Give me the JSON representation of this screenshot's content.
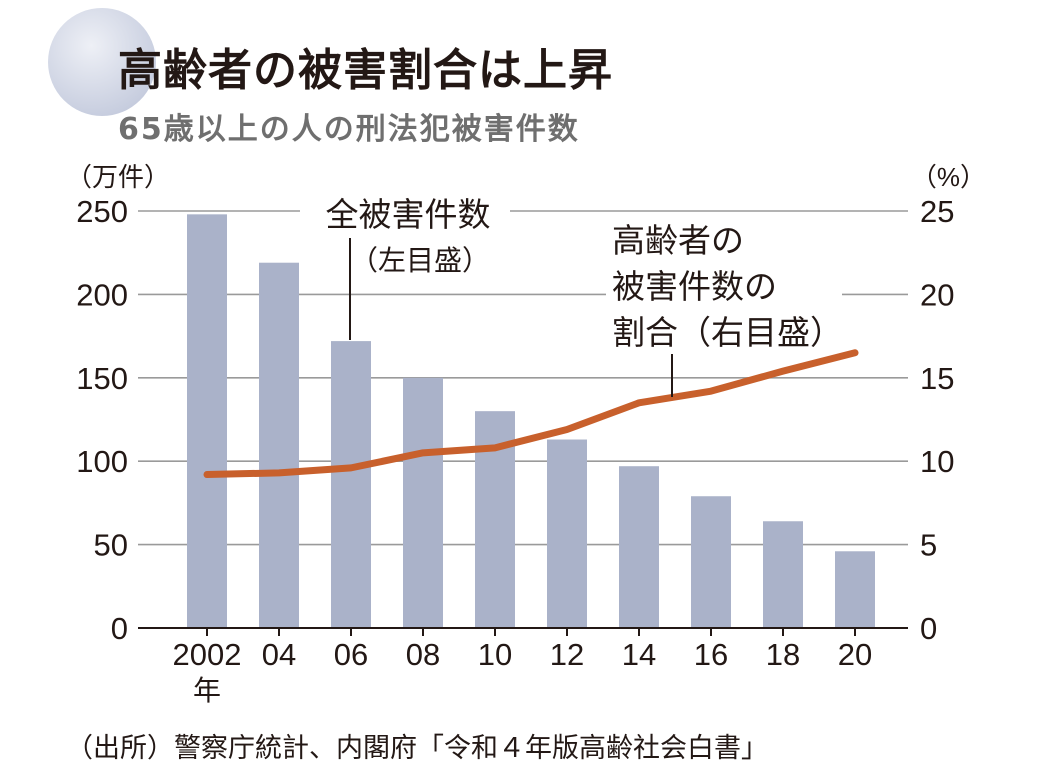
{
  "title": "高齢者の被害割合は上昇",
  "subtitle": "65歳以上の人の刑法犯被害件数",
  "source": "（出所）警察庁統計、内閣府「令和４年版高齢社会白書」",
  "colors": {
    "bar": "#aab2c9",
    "line": "#c8602c",
    "grid": "#9a9a9a",
    "text": "#231815"
  },
  "chart_data": {
    "type": "bar",
    "categories": [
      "2002",
      "04",
      "06",
      "08",
      "10",
      "12",
      "14",
      "16",
      "18",
      "20"
    ],
    "x_year_suffix": "年",
    "series": [
      {
        "name": "全被害件数",
        "axis": "left",
        "type": "bar",
        "values": [
          248,
          219,
          172,
          150,
          130,
          113,
          97,
          79,
          64,
          46
        ]
      },
      {
        "name": "高齢者の被害件数の割合",
        "axis": "right",
        "type": "line",
        "values": [
          9.2,
          9.3,
          9.6,
          10.5,
          10.8,
          11.9,
          13.5,
          14.2,
          15.4,
          16.5
        ]
      }
    ],
    "left_axis": {
      "unit": "（万件）",
      "ylim": [
        0,
        250
      ],
      "ticks": [
        0,
        50,
        100,
        150,
        200,
        250
      ]
    },
    "right_axis": {
      "unit": "（%）",
      "ylim": [
        0,
        25
      ],
      "ticks": [
        0,
        5,
        10,
        15,
        20,
        25
      ]
    },
    "annotations": [
      {
        "target": "bar",
        "lines": [
          "全被害件数",
          "（左目盛）"
        ]
      },
      {
        "target": "line",
        "lines": [
          "高齢者の",
          "被害件数の",
          "割合（右目盛）"
        ]
      }
    ],
    "grid": true
  }
}
